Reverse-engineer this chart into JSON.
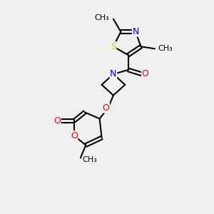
{
  "background_color": "#f0f0f0",
  "atoms": {
    "S": {
      "color": "#cccc00",
      "label": "S"
    },
    "N_thiazole": {
      "color": "#0000ff",
      "label": "N"
    },
    "N_azetidine": {
      "color": "#0000ff",
      "label": "N"
    },
    "O_carbonyl_az": {
      "color": "#ff0000",
      "label": "O"
    },
    "O1_pyran": {
      "color": "#ff0000",
      "label": "O"
    },
    "O2_pyran": {
      "color": "#ff0000",
      "label": "O"
    },
    "O_link": {
      "color": "#ff0000",
      "label": "O"
    },
    "O_carbonyl_py": {
      "color": "#ff0000",
      "label": "O"
    }
  },
  "bond_color": "#000000",
  "bond_width": 1.5,
  "font_size": 9,
  "figsize": [
    3.0,
    3.0
  ],
  "dpi": 100
}
